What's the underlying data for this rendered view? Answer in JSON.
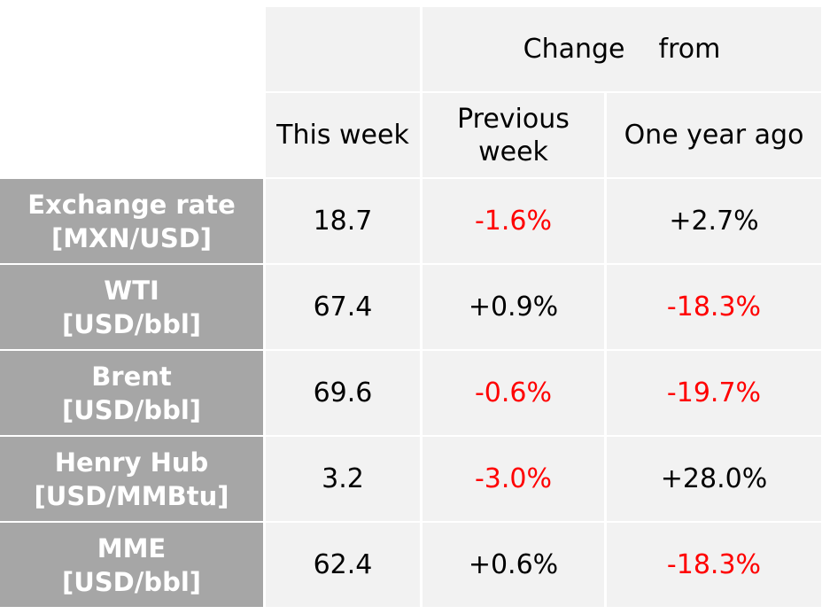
{
  "header": {
    "change_word1": "Change",
    "change_word2": "from",
    "col_this_week": "This week",
    "col_prev_line1": "Previous",
    "col_prev_line2": "week",
    "col_year_ago": "One year ago"
  },
  "rows": [
    {
      "label1": "Exchange rate",
      "label2": "[MXN/USD]",
      "this_week": "18.7",
      "prev_week": "-1.6%",
      "year_ago": "+2.7%"
    },
    {
      "label1": "WTI",
      "label2": "[USD/bbl]",
      "this_week": "67.4",
      "prev_week": "+0.9%",
      "year_ago": "-18.3%"
    },
    {
      "label1": "Brent",
      "label2": "[USD/bbl]",
      "this_week": "69.6",
      "prev_week": "-0.6%",
      "year_ago": "-19.7%"
    },
    {
      "label1": "Henry Hub",
      "label2": "[USD/MMBtu]",
      "this_week": "3.2",
      "prev_week": "-3.0%",
      "year_ago": "+28.0%"
    },
    {
      "label1": "MME",
      "label2": "[USD/bbl]",
      "this_week": "62.4",
      "prev_week": "+0.6%",
      "year_ago": "-18.3%"
    }
  ],
  "colors": {
    "negative": "#ff0000",
    "label_bg": "#a6a6a6",
    "cell_bg": "#f2f2f2"
  }
}
